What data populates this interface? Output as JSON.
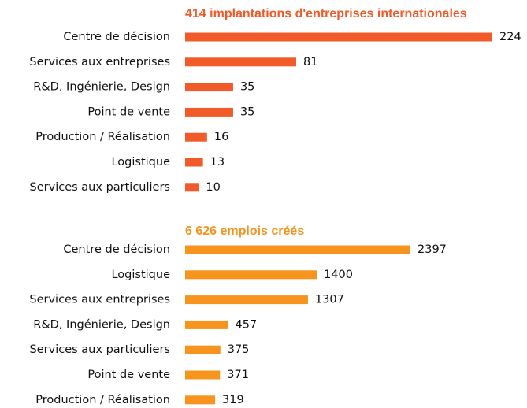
{
  "chart_data": [
    {
      "type": "bar",
      "orientation": "horizontal",
      "title": "414 implantations d'entreprises internationales",
      "color": "#f15a29",
      "categories": [
        "Centre de décision",
        "Services aux entreprises",
        "R&D, Ingénierie, Design",
        "Point de vente",
        "Production / Réalisation",
        "Logistique",
        "Services aux particuliers"
      ],
      "values": [
        224,
        81,
        35,
        35,
        16,
        13,
        10
      ]
    },
    {
      "type": "bar",
      "orientation": "horizontal",
      "title": "6 626 emplois créés",
      "color": "#f7941d",
      "categories": [
        "Centre de décision",
        "Logistique",
        "Services aux entreprises",
        "R&D, Ingénierie, Design",
        "Services aux particuliers",
        "Point de vente",
        "Production / Réalisation"
      ],
      "values": [
        2397,
        1400,
        1307,
        457,
        375,
        371,
        319
      ]
    }
  ]
}
